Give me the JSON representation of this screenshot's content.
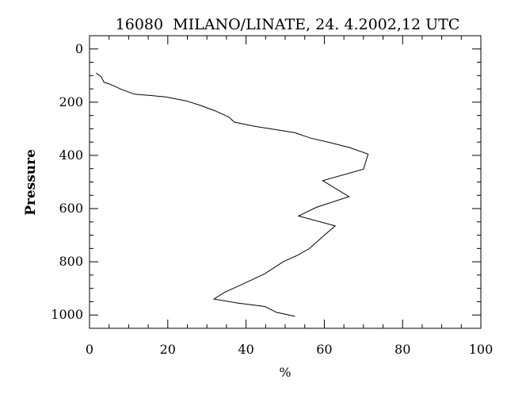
{
  "chart_data": {
    "type": "line",
    "title": "16080  MILANO/LINATE, 24. 4.2002,12 UTC",
    "xlabel": "%",
    "ylabel": "Pressure",
    "xlim": [
      0,
      100
    ],
    "ylim": [
      1050,
      -50
    ],
    "y_inverted": true,
    "x_ticks": [
      0,
      20,
      40,
      60,
      80,
      100
    ],
    "y_ticks": [
      0,
      200,
      400,
      600,
      800,
      1000
    ],
    "grid": false,
    "series": [
      {
        "values": [
          {
            "x": 1.7,
            "y": 90
          },
          {
            "x": 3.0,
            "y": 105
          },
          {
            "x": 3.7,
            "y": 125
          },
          {
            "x": 5.2,
            "y": 132
          },
          {
            "x": 8.2,
            "y": 152
          },
          {
            "x": 11.5,
            "y": 170
          },
          {
            "x": 15.7,
            "y": 175
          },
          {
            "x": 19.5,
            "y": 180
          },
          {
            "x": 24.7,
            "y": 195
          },
          {
            "x": 28.3,
            "y": 212
          },
          {
            "x": 32.0,
            "y": 232
          },
          {
            "x": 35.5,
            "y": 255
          },
          {
            "x": 37.0,
            "y": 275
          },
          {
            "x": 42.0,
            "y": 290
          },
          {
            "x": 47.5,
            "y": 303
          },
          {
            "x": 52.5,
            "y": 315
          },
          {
            "x": 56.5,
            "y": 335
          },
          {
            "x": 61.5,
            "y": 352
          },
          {
            "x": 66.3,
            "y": 370
          },
          {
            "x": 71.2,
            "y": 395
          },
          {
            "x": 70.0,
            "y": 452
          },
          {
            "x": 59.6,
            "y": 495
          },
          {
            "x": 66.3,
            "y": 555
          },
          {
            "x": 58.0,
            "y": 595
          },
          {
            "x": 53.4,
            "y": 628
          },
          {
            "x": 62.8,
            "y": 665
          },
          {
            "x": 60.0,
            "y": 700
          },
          {
            "x": 56.2,
            "y": 750
          },
          {
            "x": 53.2,
            "y": 775
          },
          {
            "x": 49.5,
            "y": 800
          },
          {
            "x": 44.8,
            "y": 845
          },
          {
            "x": 39.0,
            "y": 885
          },
          {
            "x": 34.5,
            "y": 915
          },
          {
            "x": 31.8,
            "y": 940
          },
          {
            "x": 37.8,
            "y": 955
          },
          {
            "x": 44.8,
            "y": 968
          },
          {
            "x": 47.8,
            "y": 990
          },
          {
            "x": 52.5,
            "y": 1005
          }
        ]
      }
    ]
  }
}
